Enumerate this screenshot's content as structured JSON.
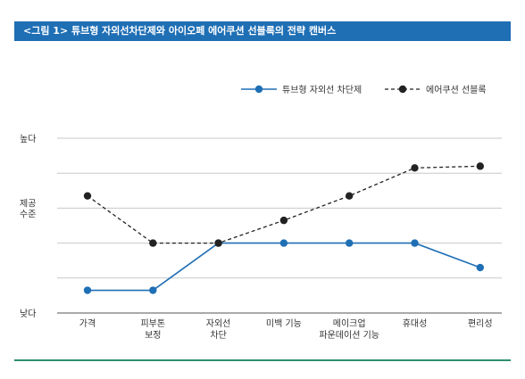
{
  "figure_title": "<그림 1> 튜브형 자외선차단제와 아이오페 에어쿠션 선블록의 전략 캔버스",
  "colors": {
    "title_bar": "#1f6fb5",
    "series_1": "#1f6fb5",
    "series_2": "#222222",
    "bottom_rule": "#2f8f6e",
    "grid": "#c8c8c8"
  },
  "chart_data": {
    "type": "line",
    "title": "",
    "xlabel": "",
    "ylabel": "",
    "categories": [
      [
        "가격"
      ],
      [
        "피부톤",
        "보정"
      ],
      [
        "자외선",
        "차단"
      ],
      [
        "미백 기능"
      ],
      [
        "메이크업",
        "파운데이션 기능"
      ],
      [
        "휴대성"
      ],
      [
        "편리성"
      ]
    ],
    "y_tick_labels": [
      {
        "value": 5,
        "lines": [
          "높다"
        ]
      },
      {
        "value": 3,
        "lines": [
          "제공",
          "수준"
        ]
      },
      {
        "value": 0,
        "lines": [
          "낮다"
        ]
      }
    ],
    "ylim": [
      0,
      5
    ],
    "grid_values": [
      5,
      4,
      3,
      2,
      1
    ],
    "grid": true,
    "legend_position": "top-right",
    "series": [
      {
        "name": "튜브형 자외선 차단제",
        "style": "solid",
        "values": [
          0.65,
          0.65,
          2.0,
          2.0,
          2.0,
          2.0,
          1.3
        ]
      },
      {
        "name": "에어쿠션 선블록",
        "style": "dashed",
        "values": [
          3.35,
          2.0,
          2.0,
          2.65,
          3.35,
          4.15,
          4.2
        ]
      }
    ]
  }
}
